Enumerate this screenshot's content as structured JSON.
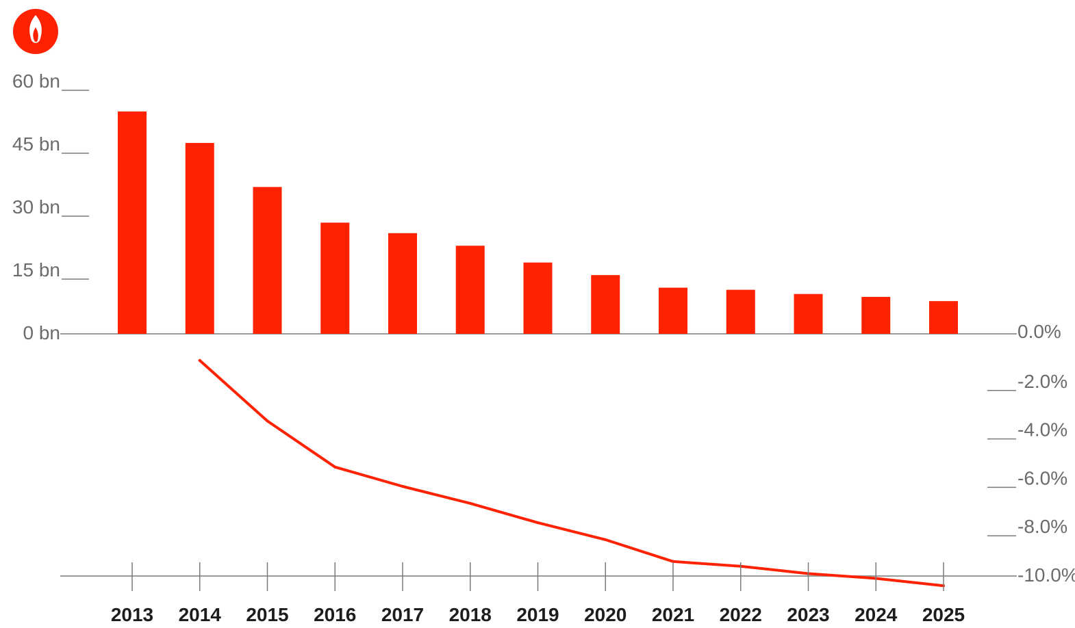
{
  "colors": {
    "accent": "#ff2200",
    "axis": "#9a9a9a",
    "tick_text": "#6b6b6b",
    "year_text": "#1d1d1d",
    "background": "#ffffff"
  },
  "logo": {
    "icon": "flame-icon"
  },
  "chart_data": [
    {
      "type": "bar",
      "categories": [
        "2013",
        "2014",
        "2015",
        "2016",
        "2017",
        "2018",
        "2019",
        "2020",
        "2021",
        "2022",
        "2023",
        "2024",
        "2025"
      ],
      "values": [
        53,
        45.5,
        35,
        26.5,
        24,
        21,
        17,
        14,
        11,
        10.5,
        9.5,
        8.8,
        7.8
      ],
      "ylim": [
        0,
        60
      ],
      "y_ticks": [
        0,
        15,
        30,
        45,
        60
      ],
      "y_tick_labels": [
        "0 bn",
        "15 bn",
        "30 bn",
        "45 bn",
        "60 bn"
      ],
      "title": "",
      "xlabel": "",
      "ylabel": "",
      "grid": false,
      "color": "#ff2200"
    },
    {
      "type": "line",
      "x": [
        "2014",
        "2015",
        "2016",
        "2017",
        "2018",
        "2019",
        "2020",
        "2021",
        "2022",
        "2023",
        "2024",
        "2025"
      ],
      "values": [
        -1.1,
        -3.6,
        -5.5,
        -6.3,
        -7.0,
        -7.8,
        -8.5,
        -9.4,
        -9.6,
        -9.9,
        -10.1,
        -10.4
      ],
      "ylim": [
        -10.0,
        0.0
      ],
      "y_ticks": [
        0,
        -2,
        -4,
        -6,
        -8,
        -10
      ],
      "y_tick_labels": [
        "0.0%",
        "-2.0%",
        "-4.0%",
        "-6.0%",
        "-8.0%",
        "-10.0%"
      ],
      "title": "",
      "xlabel": "",
      "ylabel": "",
      "grid": false,
      "color": "#ff2200"
    }
  ]
}
